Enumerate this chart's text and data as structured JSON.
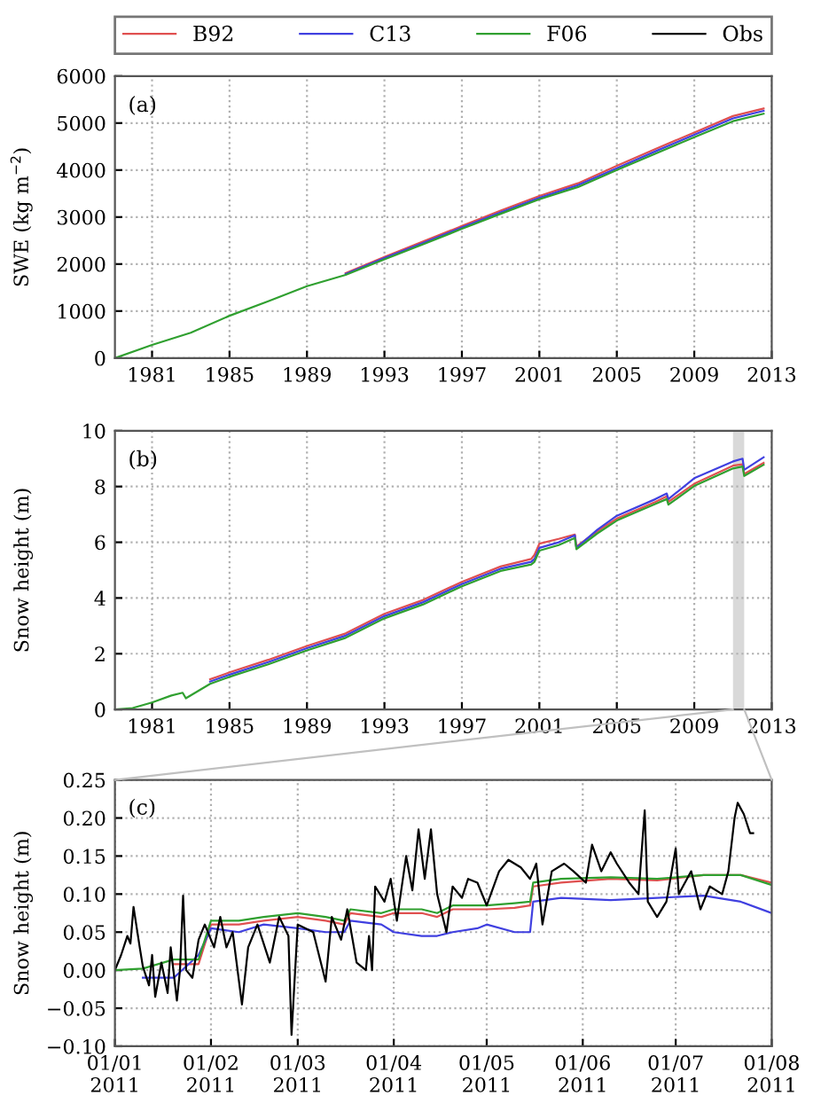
{
  "chart_data": [
    {
      "type": "line",
      "ylabel": "SWE (kg m$^{−2}$)",
      "legend": "top",
      "grid": true,
      "annotations": [
        "(a)"
      ],
      "xlim": [
        "1979-02",
        "2013"
      ],
      "xticks": [
        "1981",
        "1985",
        "1989",
        "1993",
        "1997",
        "2001",
        "2005",
        "2009",
        "2013"
      ],
      "ylim": [
        0,
        6000
      ],
      "yticks": [
        0,
        1000,
        2000,
        3000,
        4000,
        5000,
        6000
      ],
      "x": [
        "1979-02",
        "1981",
        "1983",
        "1985",
        "1987",
        "1989",
        "1991",
        "1993",
        "1995",
        "1997",
        "1999",
        "2001",
        "2003",
        "2005",
        "2007",
        "2009",
        "2011",
        "2012-08"
      ],
      "series": [
        {
          "name": "B92",
          "color": "#e05050",
          "values": [
            null,
            null,
            null,
            null,
            null,
            null,
            1810,
            2150,
            2480,
            2810,
            3140,
            3450,
            3720,
            4090,
            4450,
            4800,
            5150,
            5310
          ]
        },
        {
          "name": "C13",
          "color": "#4040e0",
          "values": [
            null,
            null,
            null,
            null,
            null,
            null,
            1790,
            2130,
            2450,
            2780,
            3100,
            3410,
            3680,
            4040,
            4400,
            4750,
            5100,
            5260
          ]
        },
        {
          "name": "F06",
          "color": "#30a030",
          "values": [
            0,
            280,
            540,
            900,
            1210,
            1530,
            1770,
            2100,
            2420,
            2750,
            3070,
            3380,
            3640,
            4000,
            4350,
            4700,
            5040,
            5200
          ]
        }
      ]
    },
    {
      "type": "line",
      "ylabel": "Snow height (m)",
      "grid": true,
      "annotations": [
        "(b)"
      ],
      "xlim": [
        "1979-02",
        "2013"
      ],
      "xticks": [
        "1981",
        "1985",
        "1989",
        "1993",
        "1997",
        "2001",
        "2005",
        "2009",
        "2013"
      ],
      "ylim": [
        0,
        10
      ],
      "yticks": [
        0,
        2,
        4,
        6,
        8,
        10
      ],
      "bands": [
        {
          "axis": "x",
          "from": "2011-01-01",
          "to": "2011-08-01",
          "color": "#d9d9d9"
        }
      ],
      "x": [
        "1979-02",
        "1980",
        "1981",
        "1982",
        "1982-08",
        "1982-10",
        "1984",
        "1985",
        "1987",
        "1989",
        "1991",
        "1993",
        "1995",
        "1997",
        "1999",
        "2000-08",
        "2000-10",
        "2001",
        "2002",
        "2002-11",
        "2002-12",
        "2004",
        "2005",
        "2007",
        "2007-08",
        "2007-09",
        "2009",
        "2011",
        "2011-07",
        "2011-08",
        "2012-08"
      ],
      "series": [
        {
          "color": "#e05050",
          "values": [
            null,
            null,
            null,
            null,
            null,
            null,
            1.08,
            1.33,
            1.78,
            2.28,
            2.73,
            3.43,
            3.93,
            4.58,
            5.13,
            5.4,
            5.55,
            5.95,
            6.12,
            6.28,
            5.85,
            6.4,
            6.85,
            7.45,
            7.65,
            7.45,
            8.1,
            8.75,
            8.8,
            8.45,
            8.85
          ]
        },
        {
          "color": "#4040e0",
          "values": [
            null,
            null,
            null,
            null,
            null,
            null,
            1.0,
            1.25,
            1.7,
            2.2,
            2.65,
            3.35,
            3.85,
            4.5,
            5.05,
            5.3,
            5.4,
            5.8,
            6.0,
            6.25,
            5.8,
            6.45,
            6.95,
            7.55,
            7.75,
            7.55,
            8.3,
            8.9,
            9.0,
            8.6,
            9.05
          ]
        },
        {
          "color": "#30a030",
          "values": [
            0,
            0.05,
            0.25,
            0.5,
            0.6,
            0.4,
            0.92,
            1.17,
            1.62,
            2.12,
            2.57,
            3.27,
            3.77,
            4.42,
            4.97,
            5.2,
            5.3,
            5.7,
            5.9,
            6.15,
            5.75,
            6.32,
            6.78,
            7.38,
            7.55,
            7.35,
            8.02,
            8.65,
            8.72,
            8.38,
            8.78
          ]
        }
      ]
    },
    {
      "type": "line",
      "ylabel": "Snow height (m)",
      "grid": true,
      "annotations": [
        "(c)"
      ],
      "xlim": [
        "2011-01-01",
        "2011-08-01"
      ],
      "xticks": [
        {
          "value": "2011-01-01",
          "label": "01/01\n2011"
        },
        {
          "value": "2011-02-01",
          "label": "01/02\n2011"
        },
        {
          "value": "2011-03-01",
          "label": "01/03\n2011"
        },
        {
          "value": "2011-04-01",
          "label": "01/04\n2011"
        },
        {
          "value": "2011-05-01",
          "label": "01/05\n2011"
        },
        {
          "value": "2011-06-01",
          "label": "01/06\n2011"
        },
        {
          "value": "2011-07-01",
          "label": "01/07\n2011"
        },
        {
          "value": "2011-08-01",
          "label": "01/08\n2011"
        }
      ],
      "ylim": [
        -0.1,
        0.25
      ],
      "yticks": [
        {
          "value": -0.1,
          "label": "−0.10"
        },
        {
          "value": -0.05,
          "label": "−0.05"
        },
        {
          "value": 0,
          "label": "0.00"
        },
        {
          "value": 0.05,
          "label": "0.05"
        },
        {
          "value": 0.1,
          "label": "0.10"
        },
        {
          "value": 0.15,
          "label": "0.15"
        },
        {
          "value": 0.2,
          "label": "0.20"
        },
        {
          "value": 0.25,
          "label": "0.25"
        }
      ],
      "x": [
        "2011-01-01",
        "2011-01-10",
        "2011-01-20",
        "2011-01-28",
        "2011-02-01",
        "2011-02-10",
        "2011-02-18",
        "2011-03-01",
        "2011-03-10",
        "2011-03-16",
        "2011-03-18",
        "2011-03-28",
        "2011-04-01",
        "2011-04-10",
        "2011-04-15",
        "2011-04-20",
        "2011-04-28",
        "2011-05-01",
        "2011-05-10",
        "2011-05-15",
        "2011-05-16",
        "2011-05-25",
        "2011-06-10",
        "2011-06-25",
        "2011-07-10",
        "2011-07-22",
        "2011-08-01"
      ],
      "series": [
        {
          "color": "#e05050",
          "values": [
            null,
            null,
            0.008,
            0.008,
            0.06,
            0.06,
            0.065,
            0.07,
            0.065,
            0.06,
            0.075,
            0.07,
            0.075,
            0.075,
            0.07,
            0.08,
            0.08,
            0.08,
            0.082,
            0.085,
            0.11,
            0.115,
            0.12,
            0.118,
            0.125,
            0.125,
            0.115
          ]
        },
        {
          "color": "#4040e0",
          "values": [
            null,
            -0.01,
            -0.01,
            0.02,
            0.055,
            0.05,
            0.06,
            0.055,
            0.05,
            0.05,
            0.065,
            0.06,
            0.05,
            0.045,
            0.045,
            0.05,
            0.055,
            0.06,
            0.05,
            0.05,
            0.09,
            0.095,
            0.092,
            0.095,
            0.098,
            0.09,
            0.075
          ]
        },
        {
          "color": "#30a030",
          "values": [
            0,
            0.002,
            0.014,
            0.014,
            0.065,
            0.065,
            0.07,
            0.075,
            0.07,
            0.065,
            0.08,
            0.075,
            0.08,
            0.08,
            0.075,
            0.085,
            0.085,
            0.085,
            0.088,
            0.09,
            0.115,
            0.12,
            0.122,
            0.12,
            0.125,
            0.125,
            0.112
          ]
        },
        {
          "name": "Obs",
          "color": "#000000",
          "x": [
            "2011-01-01",
            "2011-01-03",
            "2011-01-05",
            "2011-01-06",
            "2011-01-07",
            "2011-01-09",
            "2011-01-10",
            "2011-01-12",
            "2011-01-13",
            "2011-01-14",
            "2011-01-16",
            "2011-01-18",
            "2011-01-19",
            "2011-01-21",
            "2011-01-22",
            "2011-01-23",
            "2011-01-24",
            "2011-01-26",
            "2011-01-28",
            "2011-01-30",
            "2011-02-02",
            "2011-02-04",
            "2011-02-06",
            "2011-02-08",
            "2011-02-11",
            "2011-02-13",
            "2011-02-16",
            "2011-02-20",
            "2011-02-23",
            "2011-02-26",
            "2011-02-27",
            "2011-03-01",
            "2011-03-06",
            "2011-03-10",
            "2011-03-12",
            "2011-03-15",
            "2011-03-17",
            "2011-03-20",
            "2011-03-23",
            "2011-03-24",
            "2011-03-25",
            "2011-03-26",
            "2011-03-29",
            "2011-03-31",
            "2011-04-02",
            "2011-04-05",
            "2011-04-07",
            "2011-04-09",
            "2011-04-11",
            "2011-04-13",
            "2011-04-15",
            "2011-04-18",
            "2011-04-20",
            "2011-04-23",
            "2011-04-25",
            "2011-04-28",
            "2011-05-01",
            "2011-05-05",
            "2011-05-08",
            "2011-05-12",
            "2011-05-15",
            "2011-05-17",
            "2011-05-19",
            "2011-05-22",
            "2011-05-26",
            "2011-05-29",
            "2011-06-02",
            "2011-06-04",
            "2011-06-07",
            "2011-06-10",
            "2011-06-12",
            "2011-06-16",
            "2011-06-19",
            "2011-06-21",
            "2011-06-22",
            "2011-06-25",
            "2011-06-28",
            "2011-07-01",
            "2011-07-02",
            "2011-07-06",
            "2011-07-09",
            "2011-07-12",
            "2011-07-16",
            "2011-07-18",
            "2011-07-20",
            "2011-07-21",
            "2011-07-23",
            "2011-07-25",
            "2011-07-26"
          ],
          "values": [
            0.0,
            0.02,
            0.045,
            0.035,
            0.083,
            0.03,
            0.005,
            -0.02,
            0.02,
            -0.035,
            0.01,
            -0.03,
            0.03,
            -0.04,
            0.0,
            0.098,
            0.0,
            -0.01,
            0.04,
            0.06,
            0.03,
            0.07,
            0.03,
            0.05,
            -0.045,
            0.03,
            0.06,
            0.01,
            0.07,
            0.045,
            -0.085,
            0.06,
            0.05,
            -0.015,
            0.07,
            0.04,
            0.08,
            0.01,
            0.0,
            0.045,
            0.0,
            0.11,
            0.09,
            0.12,
            0.065,
            0.15,
            0.105,
            0.185,
            0.12,
            0.185,
            0.1,
            0.05,
            0.11,
            0.095,
            0.12,
            0.115,
            0.085,
            0.13,
            0.145,
            0.135,
            0.12,
            0.14,
            0.06,
            0.13,
            0.14,
            0.13,
            0.115,
            0.165,
            0.13,
            0.155,
            0.14,
            0.115,
            0.1,
            0.21,
            0.09,
            0.07,
            0.09,
            0.16,
            0.1,
            0.13,
            0.08,
            0.11,
            0.1,
            0.13,
            0.2,
            0.22,
            0.205,
            0.18,
            0.18
          ]
        }
      ]
    }
  ]
}
